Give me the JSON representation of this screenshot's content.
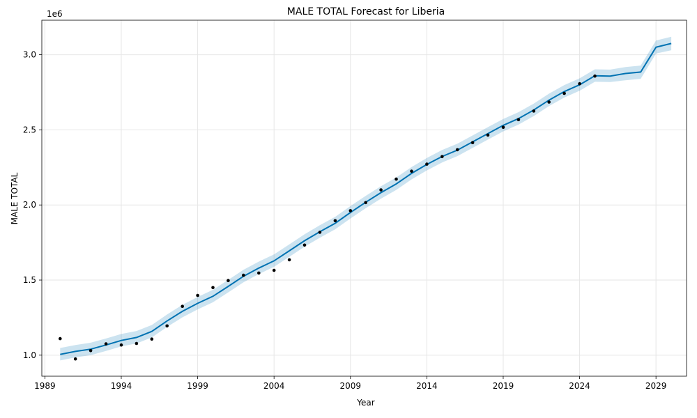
{
  "chart_data": {
    "type": "line",
    "title": "MALE TOTAL Forecast for Liberia",
    "xlabel": "Year",
    "ylabel": "MALE TOTAL",
    "y_scale_label": "1e6",
    "xlim": [
      1988.8,
      2031.0
    ],
    "ylim": [
      860000,
      3230000
    ],
    "x_ticks": [
      1989,
      1994,
      1999,
      2004,
      2009,
      2014,
      2019,
      2024,
      2029
    ],
    "y_ticks": [
      1000000,
      1500000,
      2000000,
      2500000,
      3000000
    ],
    "y_tick_labels": [
      "1.0",
      "1.5",
      "2.0",
      "2.5",
      "3.0"
    ],
    "grid": true,
    "colors": {
      "forecast_line": "#0072B2",
      "uncertainty_band": "#0072B2",
      "observed_points": "#000000",
      "grid": "#e6e6e6",
      "axes": "#000000"
    },
    "observed": {
      "x": [
        1990,
        1991,
        1992,
        1993,
        1994,
        1995,
        1996,
        1997,
        1998,
        1999,
        2000,
        2001,
        2002,
        2003,
        2004,
        2005,
        2006,
        2007,
        2008,
        2009,
        2010,
        2011,
        2012,
        2013,
        2014,
        2015,
        2016,
        2017,
        2018,
        2019,
        2020,
        2021,
        2022,
        2023,
        2024,
        2025
      ],
      "y": [
        1110000,
        975000,
        1030000,
        1075000,
        1068000,
        1078000,
        1107000,
        1195000,
        1325000,
        1398000,
        1450000,
        1497000,
        1532000,
        1547000,
        1565000,
        1635000,
        1733000,
        1818000,
        1895000,
        1962000,
        2016000,
        2100000,
        2172000,
        2225000,
        2272000,
        2322000,
        2368000,
        2415000,
        2465000,
        2517000,
        2568000,
        2625000,
        2685000,
        2743000,
        2807000,
        2858000
      ]
    },
    "forecast": {
      "x": [
        1990,
        1991,
        1992,
        1993,
        1994,
        1995,
        1996,
        1997,
        1998,
        1999,
        2000,
        2001,
        2002,
        2003,
        2004,
        2005,
        2006,
        2007,
        2008,
        2009,
        2010,
        2011,
        2012,
        2013,
        2014,
        2015,
        2016,
        2017,
        2018,
        2019,
        2020,
        2021,
        2022,
        2023,
        2024,
        2025,
        2026,
        2027,
        2028,
        2029,
        2030
      ],
      "yhat": [
        1005000,
        1025000,
        1040000,
        1068000,
        1098000,
        1118000,
        1158000,
        1228000,
        1292000,
        1345000,
        1392000,
        1458000,
        1525000,
        1580000,
        1628000,
        1695000,
        1762000,
        1822000,
        1878000,
        1950000,
        2018000,
        2082000,
        2140000,
        2210000,
        2270000,
        2323000,
        2365000,
        2420000,
        2475000,
        2530000,
        2575000,
        2632000,
        2698000,
        2755000,
        2800000,
        2860000,
        2858000,
        2875000,
        2885000,
        3050000,
        3075000
      ],
      "lower": [
        965000,
        985000,
        1000000,
        1028000,
        1058000,
        1078000,
        1118000,
        1188000,
        1252000,
        1305000,
        1352000,
        1418000,
        1485000,
        1540000,
        1588000,
        1655000,
        1722000,
        1782000,
        1838000,
        1910000,
        1978000,
        2042000,
        2100000,
        2170000,
        2230000,
        2283000,
        2325000,
        2380000,
        2435000,
        2490000,
        2535000,
        2592000,
        2658000,
        2715000,
        2760000,
        2820000,
        2818000,
        2830000,
        2840000,
        3008000,
        3030000
      ],
      "upper": [
        1048000,
        1068000,
        1083000,
        1111000,
        1141000,
        1161000,
        1201000,
        1271000,
        1335000,
        1388000,
        1435000,
        1501000,
        1568000,
        1623000,
        1671000,
        1738000,
        1805000,
        1865000,
        1921000,
        1993000,
        2061000,
        2125000,
        2183000,
        2253000,
        2313000,
        2366000,
        2408000,
        2463000,
        2518000,
        2573000,
        2618000,
        2675000,
        2741000,
        2798000,
        2843000,
        2903000,
        2901000,
        2918000,
        2928000,
        3095000,
        3120000
      ]
    }
  }
}
